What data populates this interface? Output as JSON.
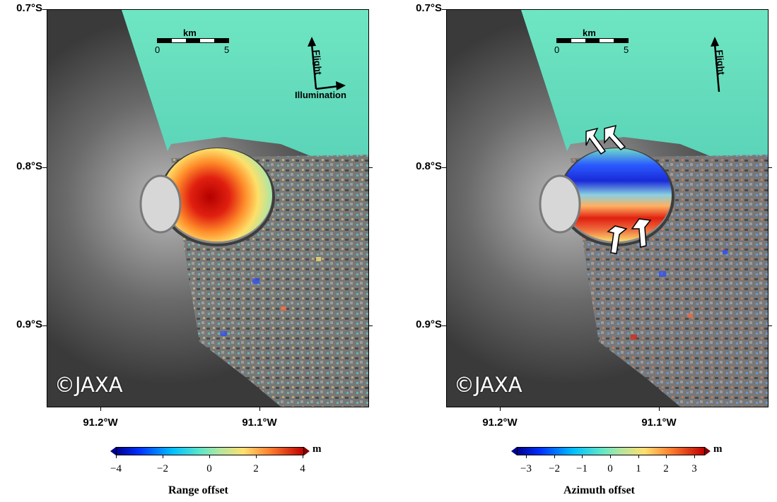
{
  "panels": [
    {
      "id": "left",
      "lat_labels": [
        "0.7°S",
        "0.8°S",
        "0.9°S"
      ],
      "lon_labels": [
        "91.2°W",
        "91.1°W"
      ],
      "scalebar": {
        "unit": "km",
        "start": "0",
        "end": "5"
      },
      "flight_label": "Flight",
      "illumination_label": "Illumination",
      "copyright": "©JAXA",
      "colorbar": {
        "title": "Range offset",
        "unit": "m",
        "ticks": [
          "−4",
          "−2",
          "0",
          "2",
          "4"
        ]
      }
    },
    {
      "id": "right",
      "lat_labels": [
        "0.7°S",
        "0.8°S",
        "0.9°S"
      ],
      "lon_labels": [
        "91.2°W",
        "91.1°W"
      ],
      "scalebar": {
        "unit": "km",
        "start": "0",
        "end": "5"
      },
      "flight_label": "Flight",
      "copyright": "©JAXA",
      "colorbar": {
        "title": "Azimuth offset",
        "unit": "m",
        "ticks": [
          "−3",
          "−2",
          "−1",
          "0",
          "1",
          "2",
          "3"
        ]
      }
    }
  ]
}
